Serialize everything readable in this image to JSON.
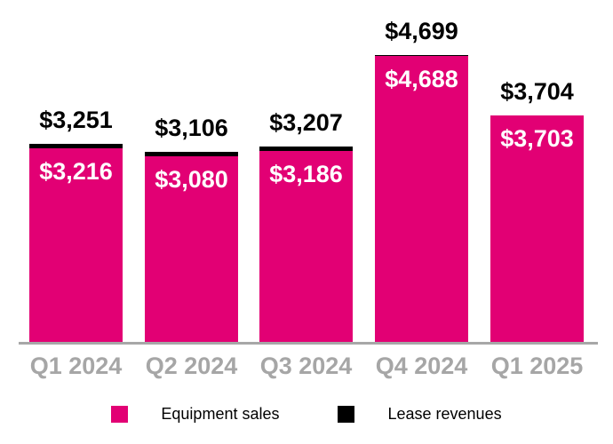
{
  "chart_data": {
    "type": "bar",
    "stacked": true,
    "title": "",
    "xlabel": "",
    "ylabel": "",
    "gridlines": false,
    "legend_position": "bottom",
    "categories": [
      "Q1 2024",
      "Q2 2024",
      "Q3 2024",
      "Q4 2024",
      "Q1 2025"
    ],
    "series": [
      {
        "name": "Equipment sales",
        "color": "#e20074",
        "values": [
          3216,
          3080,
          3186,
          4688,
          3703
        ],
        "labels": [
          "$3,216",
          "$3,080",
          "$3,186",
          "$4,688",
          "$3,703"
        ],
        "label_color": "#ffffff"
      },
      {
        "name": "Lease revenues",
        "color": "#000000",
        "values": [
          35,
          26,
          21,
          11,
          1
        ],
        "labels": [
          "",
          "",
          "",
          "",
          ""
        ],
        "label_color": "#000000"
      }
    ],
    "totals": {
      "values": [
        3251,
        3106,
        3207,
        4699,
        3704
      ],
      "labels": [
        "$3,251",
        "$3,106",
        "$3,207",
        "$4,699",
        "$3,704"
      ],
      "label_color": "#000000"
    },
    "colors": {
      "accent_magenta": "#e20074",
      "black": "#000000",
      "axis_line": "#a7a7a7",
      "tick_label": "#a6a6a6",
      "background": "#ffffff"
    },
    "legend": {
      "entries": [
        {
          "label": "Equipment sales",
          "color": "#e20074"
        },
        {
          "label": "Lease revenues",
          "color": "#000000"
        }
      ]
    }
  }
}
